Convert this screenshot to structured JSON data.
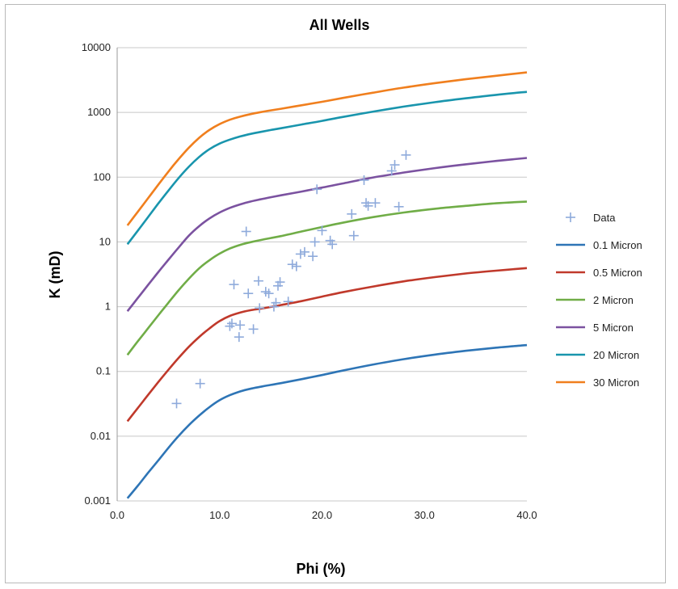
{
  "chart_data": {
    "type": "scatter",
    "title": "All Wells",
    "xlabel": "Phi (%)",
    "ylabel": "K (mD)",
    "xlim": [
      0,
      40
    ],
    "ylim": [
      0.001,
      10000
    ],
    "yscale": "log",
    "grid": "horizontal",
    "legend_position": "right",
    "x_ticks": [
      "0.0",
      "10.0",
      "20.0",
      "30.0",
      "40.0"
    ],
    "y_ticks": [
      "0.001",
      "0.01",
      "0.1",
      "1",
      "10",
      "100",
      "1000",
      "10000"
    ],
    "scatter": {
      "name": "Data",
      "color": "#8eaadb",
      "points": [
        [
          5.8,
          0.032
        ],
        [
          8.1,
          0.065
        ],
        [
          11.0,
          0.5
        ],
        [
          11.2,
          0.55
        ],
        [
          11.4,
          2.2
        ],
        [
          11.9,
          0.34
        ],
        [
          12.0,
          0.52
        ],
        [
          12.6,
          14.5
        ],
        [
          12.8,
          1.6
        ],
        [
          13.3,
          0.45
        ],
        [
          13.8,
          2.5
        ],
        [
          13.9,
          0.95
        ],
        [
          14.5,
          1.7
        ],
        [
          14.8,
          1.6
        ],
        [
          15.3,
          1.0
        ],
        [
          15.5,
          1.15
        ],
        [
          15.7,
          2.1
        ],
        [
          15.9,
          2.4
        ],
        [
          16.7,
          1.2
        ],
        [
          17.1,
          4.5
        ],
        [
          17.5,
          4.2
        ],
        [
          17.9,
          6.5
        ],
        [
          18.3,
          7.0
        ],
        [
          19.1,
          6.0
        ],
        [
          19.3,
          10.0
        ],
        [
          19.5,
          65.0
        ],
        [
          20.0,
          15.0
        ],
        [
          20.8,
          10.5
        ],
        [
          21.0,
          9.2
        ],
        [
          22.9,
          27.0
        ],
        [
          23.1,
          12.5
        ],
        [
          24.1,
          90.0
        ],
        [
          24.3,
          40.0
        ],
        [
          24.5,
          36.0
        ],
        [
          25.2,
          40.0
        ],
        [
          26.8,
          125.0
        ],
        [
          27.1,
          155.0
        ],
        [
          27.5,
          35.0
        ],
        [
          28.2,
          220.0
        ]
      ]
    },
    "series": [
      {
        "name": "0.1 Micron",
        "color": "#2e75b6",
        "x": [
          1,
          2,
          3,
          4,
          5,
          6,
          7,
          8,
          9,
          10,
          11,
          12,
          13,
          14,
          15,
          16,
          18,
          20,
          22,
          25,
          28,
          31,
          34,
          37,
          40
        ],
        "values": [
          0.0011,
          0.0017,
          0.0027,
          0.0042,
          0.0066,
          0.0101,
          0.0148,
          0.0208,
          0.028,
          0.036,
          0.043,
          0.049,
          0.054,
          0.058,
          0.062,
          0.066,
          0.076,
          0.088,
          0.103,
          0.128,
          0.155,
          0.182,
          0.208,
          0.233,
          0.255
        ]
      },
      {
        "name": "0.5 Micron",
        "color": "#c0392b",
        "x": [
          1,
          2,
          3,
          4,
          5,
          6,
          7,
          8,
          9,
          10,
          11,
          12,
          13,
          14,
          15,
          16,
          18,
          20,
          22,
          25,
          28,
          31,
          34,
          37,
          40
        ],
        "values": [
          0.017,
          0.027,
          0.043,
          0.068,
          0.106,
          0.162,
          0.24,
          0.34,
          0.46,
          0.6,
          0.72,
          0.81,
          0.88,
          0.93,
          0.99,
          1.06,
          1.22,
          1.43,
          1.67,
          2.05,
          2.46,
          2.86,
          3.25,
          3.6,
          3.95
        ]
      },
      {
        "name": "2 Micron",
        "color": "#70ad47",
        "x": [
          1,
          2,
          3,
          4,
          5,
          6,
          7,
          8,
          9,
          10,
          11,
          12,
          13,
          14,
          15,
          16,
          18,
          20,
          22,
          25,
          28,
          31,
          34,
          37,
          40
        ],
        "values": [
          0.18,
          0.29,
          0.46,
          0.73,
          1.15,
          1.8,
          2.7,
          3.9,
          5.2,
          6.6,
          7.9,
          9.0,
          9.9,
          10.7,
          11.5,
          12.3,
          14.5,
          17.0,
          19.8,
          24.2,
          28.5,
          32.5,
          36.0,
          39.5,
          42.0
        ]
      },
      {
        "name": "5 Micron",
        "color": "#7b52a0",
        "x": [
          1,
          2,
          3,
          4,
          5,
          6,
          7,
          8,
          9,
          10,
          11,
          12,
          13,
          14,
          15,
          16,
          18,
          20,
          22,
          25,
          28,
          31,
          34,
          37,
          40
        ],
        "values": [
          0.85,
          1.35,
          2.15,
          3.4,
          5.3,
          8.2,
          12.5,
          17.5,
          23.0,
          28.5,
          33.5,
          38.0,
          42.0,
          45.5,
          49.0,
          52.5,
          60.0,
          69.0,
          80.0,
          99.0,
          118.0,
          138.0,
          158.0,
          178.0,
          198.0
        ]
      },
      {
        "name": "20 Micron",
        "color": "#1995ad",
        "x": [
          1,
          2,
          3,
          4,
          5,
          6,
          7,
          8,
          9,
          10,
          11,
          12,
          13,
          14,
          15,
          16,
          18,
          20,
          22,
          25,
          28,
          31,
          34,
          37,
          40
        ],
        "values": [
          9.2,
          14.8,
          24.0,
          39.0,
          62.0,
          97.0,
          145.0,
          205.0,
          270.0,
          330.0,
          380.0,
          425.0,
          465.0,
          500.0,
          535.0,
          570.0,
          650.0,
          740.0,
          850.0,
          1030.0,
          1230.0,
          1440.0,
          1650.0,
          1870.0,
          2080.0
        ]
      },
      {
        "name": "30 Micron",
        "color": "#f07f1e",
        "x": [
          1,
          2,
          3,
          4,
          5,
          6,
          7,
          8,
          9,
          10,
          11,
          12,
          13,
          14,
          15,
          16,
          18,
          20,
          22,
          25,
          28,
          31,
          34,
          37,
          40
        ],
        "values": [
          18.0,
          29.0,
          47.0,
          76.0,
          122.0,
          190.0,
          285.0,
          405.0,
          535.0,
          660.0,
          770.0,
          860.0,
          940.0,
          1010.0,
          1075.0,
          1140.0,
          1290.0,
          1460.0,
          1670.0,
          2020.0,
          2420.0,
          2830.0,
          3250.0,
          3680.0,
          4150.0
        ]
      }
    ]
  }
}
